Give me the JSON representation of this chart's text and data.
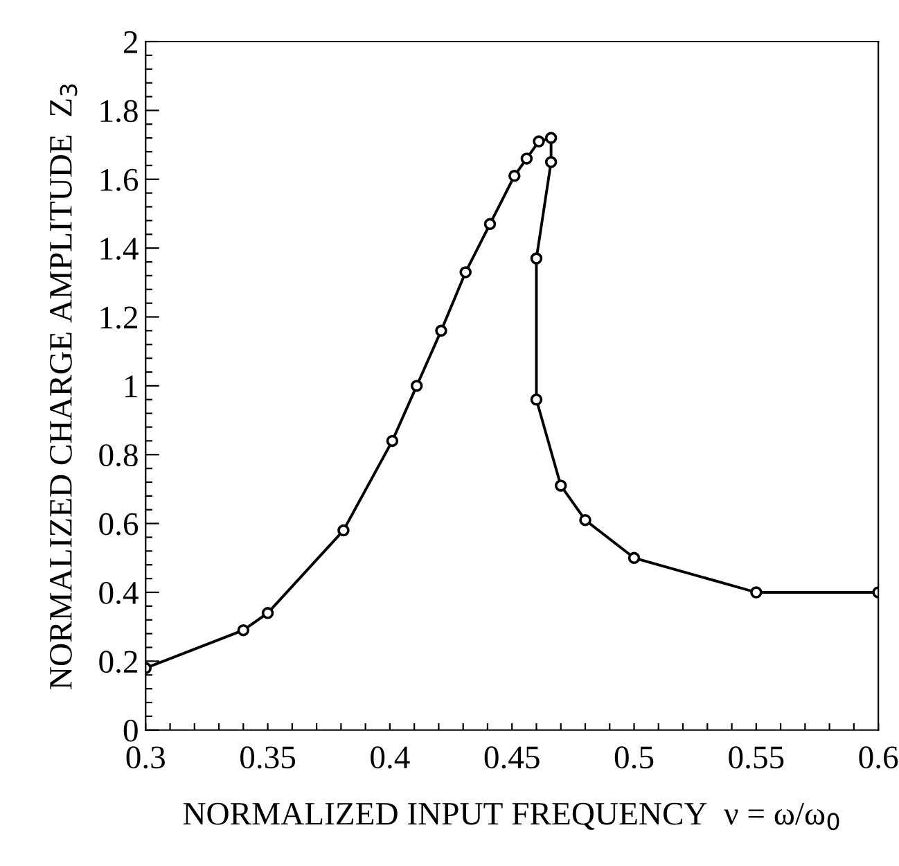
{
  "chart_data": {
    "type": "line",
    "xlabel": "NORMALIZED INPUT FREQUENCY  ν = ω/ω$_{0}$",
    "ylabel": "NORMALIZED CHARGE AMPLITUDE  Z$_{3}$",
    "series": [
      {
        "color": "#000000",
        "x": [
          0.3,
          0.34,
          0.35,
          0.381,
          0.401,
          0.411,
          0.421,
          0.431,
          0.441,
          0.451,
          0.456,
          0.461,
          0.466,
          0.466,
          0.46,
          0.46,
          0.47,
          0.48,
          0.5,
          0.55,
          0.6
        ],
        "values": [
          0.18,
          0.29,
          0.34,
          0.58,
          0.84,
          1.0,
          1.16,
          1.33,
          1.47,
          1.61,
          1.66,
          1.71,
          1.72,
          1.65,
          1.37,
          0.96,
          0.71,
          0.61,
          0.5,
          0.4,
          0.4
        ]
      }
    ],
    "marker": "circle",
    "line_style": "solid",
    "grid": false,
    "legend": false,
    "xlim": [
      0.3,
      0.6
    ],
    "ylim": [
      0,
      2
    ],
    "xticks": [
      0.3,
      {
        "value": 0.31,
        "label": null
      },
      {
        "value": 0.32,
        "label": null
      },
      {
        "value": 0.33,
        "label": null
      },
      {
        "value": 0.34,
        "label": null
      },
      0.35,
      {
        "value": 0.36,
        "label": null
      },
      {
        "value": 0.37,
        "label": null
      },
      {
        "value": 0.38,
        "label": null
      },
      {
        "value": 0.39,
        "label": null
      },
      0.4,
      {
        "value": 0.41,
        "label": null
      },
      {
        "value": 0.42,
        "label": null
      },
      {
        "value": 0.43,
        "label": null
      },
      {
        "value": 0.44,
        "label": null
      },
      0.45,
      {
        "value": 0.46,
        "label": null
      },
      {
        "value": 0.47,
        "label": null
      },
      {
        "value": 0.48,
        "label": null
      },
      {
        "value": 0.49,
        "label": null
      },
      0.5,
      {
        "value": 0.51,
        "label": null
      },
      {
        "value": 0.52,
        "label": null
      },
      {
        "value": 0.53,
        "label": null
      },
      {
        "value": 0.54,
        "label": null
      },
      0.55,
      {
        "value": 0.56,
        "label": null
      },
      {
        "value": 0.57,
        "label": null
      },
      {
        "value": 0.58,
        "label": null
      },
      {
        "value": 0.59,
        "label": null
      },
      0.6
    ],
    "yticks": [
      0,
      {
        "value": 0.04,
        "label": null
      },
      {
        "value": 0.08,
        "label": null
      },
      {
        "value": 0.12,
        "label": null
      },
      {
        "value": 0.16,
        "label": null
      },
      0.2,
      {
        "value": 0.24,
        "label": null
      },
      {
        "value": 0.28,
        "label": null
      },
      {
        "value": 0.32,
        "label": null
      },
      {
        "value": 0.36,
        "label": null
      },
      0.4,
      {
        "value": 0.44,
        "label": null
      },
      {
        "value": 0.48,
        "label": null
      },
      {
        "value": 0.52,
        "label": null
      },
      {
        "value": 0.56,
        "label": null
      },
      0.6,
      {
        "value": 0.64,
        "label": null
      },
      {
        "value": 0.68,
        "label": null
      },
      {
        "value": 0.72,
        "label": null
      },
      {
        "value": 0.76,
        "label": null
      },
      0.8,
      {
        "value": 0.84,
        "label": null
      },
      {
        "value": 0.88,
        "label": null
      },
      {
        "value": 0.92,
        "label": null
      },
      {
        "value": 0.96,
        "label": null
      },
      1,
      {
        "value": 1.04,
        "label": null
      },
      {
        "value": 1.08,
        "label": null
      },
      {
        "value": 1.12,
        "label": null
      },
      {
        "value": 1.16,
        "label": null
      },
      1.2,
      {
        "value": 1.24,
        "label": null
      },
      {
        "value": 1.28,
        "label": null
      },
      {
        "value": 1.32,
        "label": null
      },
      {
        "value": 1.36,
        "label": null
      },
      1.4,
      {
        "value": 1.44,
        "label": null
      },
      {
        "value": 1.48,
        "label": null
      },
      {
        "value": 1.52,
        "label": null
      },
      {
        "value": 1.56,
        "label": null
      },
      1.6,
      {
        "value": 1.64,
        "label": null
      },
      {
        "value": 1.68,
        "label": null
      },
      {
        "value": 1.72,
        "label": null
      },
      {
        "value": 1.76,
        "label": null
      },
      1.8,
      {
        "value": 1.84,
        "label": null
      },
      {
        "value": 1.88,
        "label": null
      },
      {
        "value": 1.92,
        "label": null
      },
      {
        "value": 1.96,
        "label": null
      },
      2
    ]
  }
}
